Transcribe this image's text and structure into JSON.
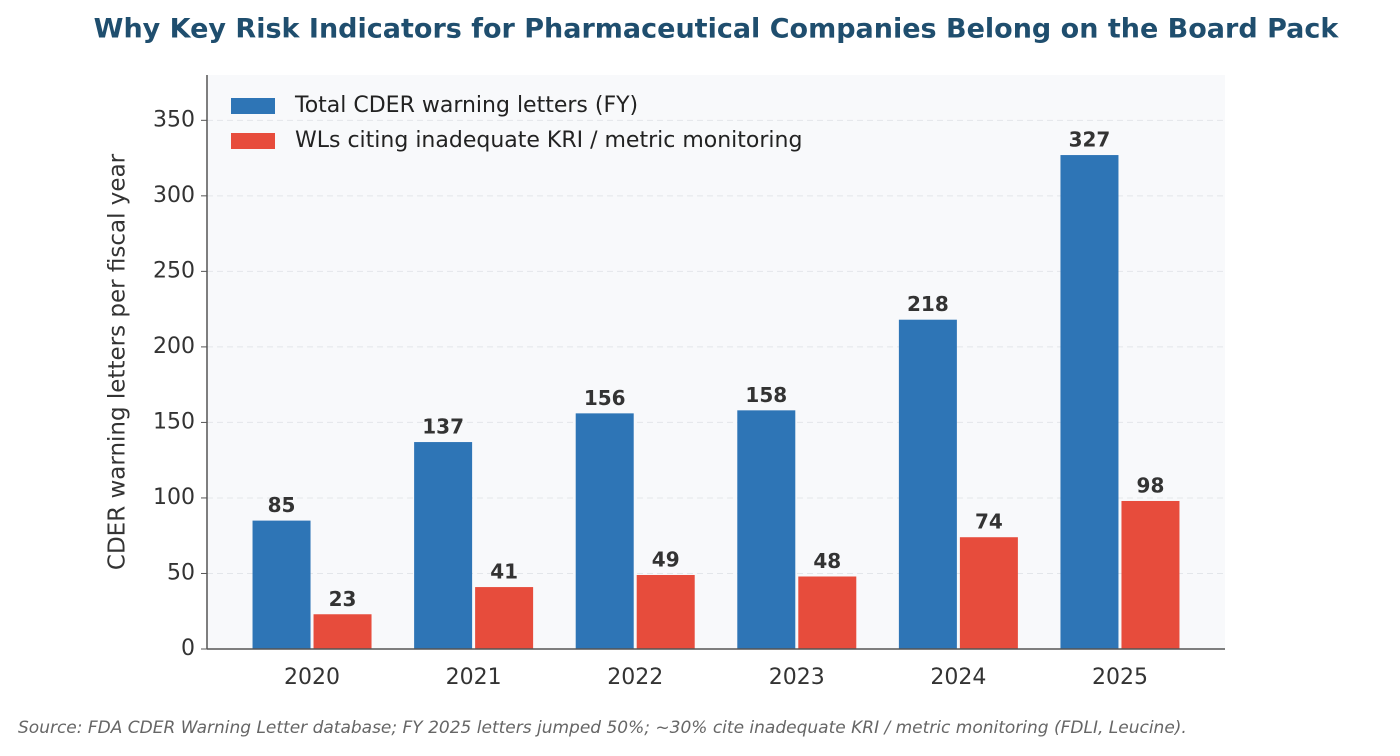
{
  "chart_data": {
    "type": "bar",
    "title": "Why Key Risk Indicators for Pharmaceutical Companies Belong on the Board Pack",
    "y_label": "CDER warning letters per fiscal year",
    "categories": [
      "2020",
      "2021",
      "2022",
      "2023",
      "2024",
      "2025"
    ],
    "series": [
      {
        "name": "Total CDER warning letters (FY)",
        "color": "#2e75b6",
        "values": [
          85,
          137,
          156,
          158,
          218,
          327
        ]
      },
      {
        "name": "WLs citing inadequate KRI / metric monitoring",
        "color": "#e74c3c",
        "values": [
          23,
          41,
          49,
          48,
          74,
          98
        ]
      }
    ],
    "ylim": [
      0,
      380
    ],
    "yticks": [
      0,
      50,
      100,
      150,
      200,
      250,
      300,
      350
    ],
    "grid": true,
    "legend": "upper-left",
    "source": "Source: FDA CDER Warning Letter database; FY 2025 letters jumped 50%; ~30% cite inadequate KRI / metric monitoring (FDLI, Leucine)."
  }
}
